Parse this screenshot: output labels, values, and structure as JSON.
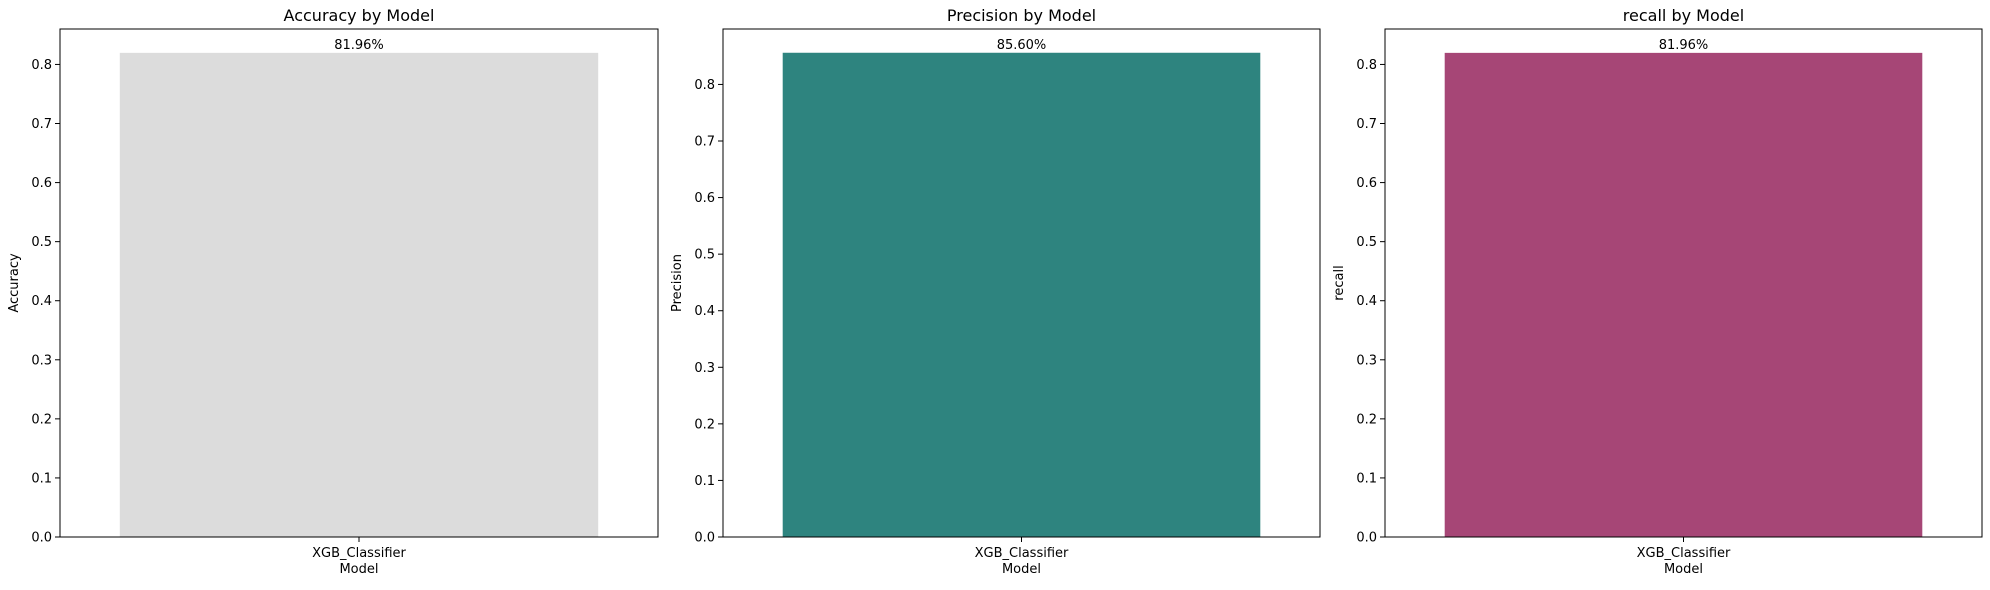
{
  "chart_data": [
    {
      "type": "bar",
      "title": "Accuracy by Model",
      "xlabel": "Model",
      "ylabel": "Accuracy",
      "categories": [
        "XGB_Classifier"
      ],
      "values": [
        0.8196
      ],
      "data_labels": [
        "81.96%"
      ],
      "ylim": [
        0,
        0.86
      ],
      "yticks": [
        0.0,
        0.1,
        0.2,
        0.3,
        0.4,
        0.5,
        0.6,
        0.7,
        0.8
      ],
      "ytick_labels": [
        "0.0",
        "0.1",
        "0.2",
        "0.3",
        "0.4",
        "0.5",
        "0.6",
        "0.7",
        "0.8"
      ],
      "color": "#dcdcdc",
      "grid": false
    },
    {
      "type": "bar",
      "title": "Precision by Model",
      "xlabel": "Model",
      "ylabel": "Precision",
      "categories": [
        "XGB_Classifier"
      ],
      "values": [
        0.856
      ],
      "data_labels": [
        "85.60%"
      ],
      "ylim": [
        0,
        0.898
      ],
      "yticks": [
        0.0,
        0.1,
        0.2,
        0.3,
        0.4,
        0.5,
        0.6,
        0.7,
        0.8
      ],
      "ytick_labels": [
        "0.0",
        "0.1",
        "0.2",
        "0.3",
        "0.4",
        "0.5",
        "0.6",
        "0.7",
        "0.8"
      ],
      "color": "#2e847f",
      "grid": false
    },
    {
      "type": "bar",
      "title": "recall by Model",
      "xlabel": "Model",
      "ylabel": "recall",
      "categories": [
        "XGB_Classifier"
      ],
      "values": [
        0.8196
      ],
      "data_labels": [
        "81.96%"
      ],
      "ylim": [
        0,
        0.86
      ],
      "yticks": [
        0.0,
        0.1,
        0.2,
        0.3,
        0.4,
        0.5,
        0.6,
        0.7,
        0.8
      ],
      "ytick_labels": [
        "0.0",
        "0.1",
        "0.2",
        "0.3",
        "0.4",
        "0.5",
        "0.6",
        "0.7",
        "0.8"
      ],
      "color": "#a64676",
      "grid": false
    }
  ]
}
